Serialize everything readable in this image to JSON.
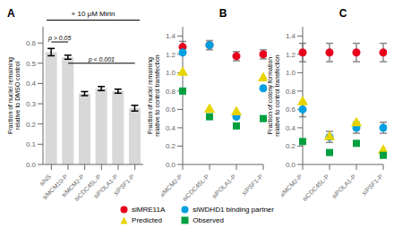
{
  "chart_data": [
    {
      "type": "bar",
      "title": "A",
      "subtitle": "+ 10 μM Mirin",
      "ylabel": "Fraction of nuclei remaining\nrelative to DMSO control",
      "categories": [
        "siNS",
        "siMCM10-P",
        "siMCM2-P",
        "siCDC45L-P",
        "siPOLA1-P",
        "siPSF1-P"
      ],
      "values": [
        0.555,
        0.53,
        0.35,
        0.375,
        0.362,
        0.278
      ],
      "errors": [
        0.018,
        0.01,
        0.01,
        0.01,
        0.01,
        0.014
      ],
      "color": "#d8d8d8",
      "ylim": [
        0.0,
        0.68
      ],
      "yticks": [
        {
          "value": 0,
          "label": "0.0"
        },
        0.1,
        0.2,
        0.3,
        0.4,
        0.5,
        0.6
      ],
      "grid": false,
      "annotations": [
        {
          "text": "p > 0.05",
          "from": "siNS",
          "to": "siMCM10-P",
          "y": 0.605
        },
        {
          "text": "p < 0.001",
          "from": "siMCM10-P",
          "to": "siPSF1-P",
          "y": 0.5
        }
      ]
    },
    {
      "type": "scatter",
      "title": "B",
      "ylabel": "Fraction of nuclei remaining\nrelative to control transfection",
      "categories": [
        "siMCM2-P",
        "siCDC45L-P",
        "siPOLA1-P",
        "siPSF1-P"
      ],
      "ylim": [
        0.0,
        1.5
      ],
      "yticks": [
        {
          "value": 0,
          "label": "0.0"
        },
        0.2,
        0.4,
        0.6,
        0.8,
        {
          "value": 1,
          "label": "1.0"
        },
        1.2,
        1.4
      ],
      "grid": false,
      "series": [
        {
          "name": "siMRE11A",
          "color": "#e8001c",
          "marker": "circle",
          "values": [
            1.28,
            1.3,
            1.18,
            1.2
          ],
          "errors": [
            0.06,
            0.05,
            0.05,
            0.05
          ]
        },
        {
          "name": "siWDHD1 binding partner",
          "color": "#00a0e0",
          "marker": "circle",
          "values": [
            1.22,
            1.3,
            0.52,
            0.83
          ]
        },
        {
          "name": "Predicted",
          "color": "#e8d400",
          "marker": "triangle",
          "values": [
            1.0,
            0.6,
            0.57,
            0.94
          ]
        },
        {
          "name": "Observed",
          "color": "#00a040",
          "marker": "square",
          "values": [
            0.8,
            0.52,
            0.42,
            0.5
          ]
        }
      ]
    },
    {
      "type": "scatter",
      "title": "C",
      "ylabel": "Fraction of colony formation\nrelative to control transfection",
      "categories": [
        "siMCM2-P",
        "siCDC45L-P",
        "siPOLA1-P",
        "siPSF1-P"
      ],
      "ylim": [
        0.0,
        1.5
      ],
      "yticks": [
        {
          "value": 0,
          "label": "0.0"
        },
        0.2,
        0.4,
        0.6,
        0.8,
        {
          "value": 1,
          "label": "1.0"
        },
        1.2,
        1.4
      ],
      "grid": false,
      "series": [
        {
          "name": "siMRE11A",
          "color": "#e8001c",
          "marker": "circle",
          "values": [
            1.22,
            1.22,
            1.22,
            1.22
          ],
          "errors": [
            0.1,
            0.1,
            0.1,
            0.1
          ]
        },
        {
          "name": "siWDHD1 binding partner",
          "color": "#00a0e0",
          "marker": "circle",
          "values": [
            0.6,
            0.3,
            0.4,
            0.4
          ],
          "errors": [
            0.08,
            0.06,
            0.06,
            0.06
          ]
        },
        {
          "name": "Predicted",
          "color": "#e8d400",
          "marker": "triangle",
          "values": [
            0.68,
            0.3,
            0.45,
            0.15
          ]
        },
        {
          "name": "Observed",
          "color": "#00a040",
          "marker": "square",
          "values": [
            0.25,
            0.13,
            0.23,
            0.1
          ]
        }
      ]
    }
  ]
}
